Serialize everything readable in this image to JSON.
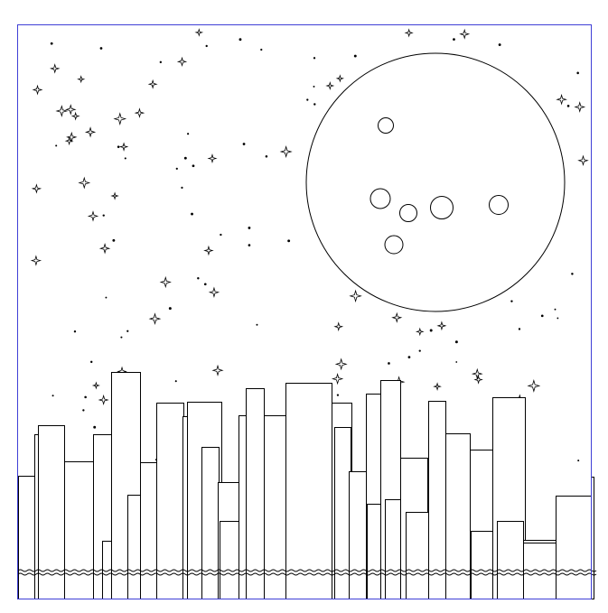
{
  "scene": {
    "frame_color": "#3f3fd6",
    "ink_color": "#000000",
    "background_color": "#ffffff",
    "moon": {
      "craters": 6
    },
    "skyline": {
      "buildings": 30
    },
    "stars": {
      "bright": 52,
      "faint": 70
    }
  }
}
